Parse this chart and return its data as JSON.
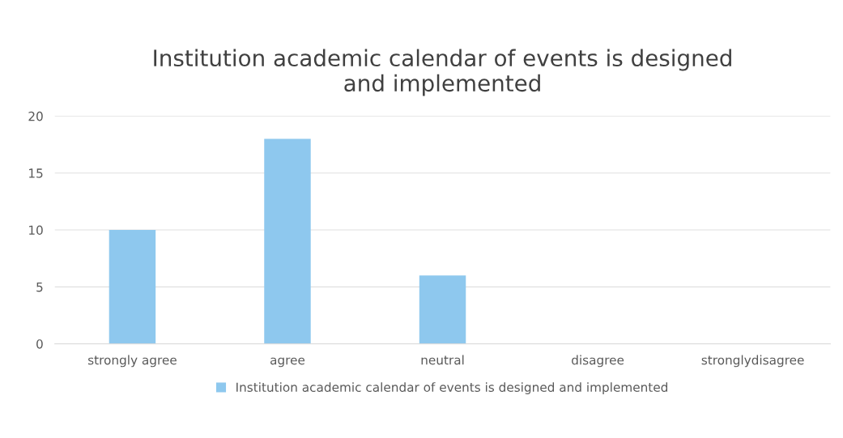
{
  "chart_data": {
    "type": "bar",
    "title": "Institution academic calendar of events is designed\nand implemented",
    "categories": [
      "strongly agree",
      "agree",
      "neutral",
      "disagree",
      "stronglydisagree"
    ],
    "series": [
      {
        "name": "Institution academic calendar of events is designed and implemented",
        "color": "#8ec8ee",
        "values": [
          10,
          18,
          6,
          0,
          0
        ]
      }
    ],
    "ylim": [
      0,
      20
    ],
    "yticks": [
      0,
      5,
      10,
      15,
      20
    ],
    "grid": "y",
    "legend": "bottom"
  }
}
